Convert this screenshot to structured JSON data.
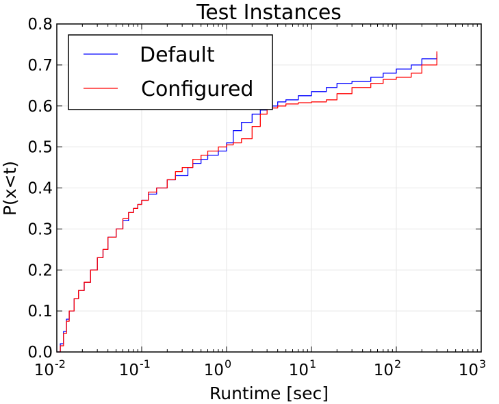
{
  "chart_data": {
    "type": "line",
    "title": "Test Instances",
    "xlabel": "Runtime [sec]",
    "ylabel": "P(x<t)",
    "xscale": "log",
    "xlim": [
      0.01,
      1000
    ],
    "ylim": [
      0.0,
      0.8
    ],
    "grid": true,
    "legend_position": "top-left",
    "x_ticks": [
      {
        "base": "10",
        "exp": "-2",
        "value": 0.01
      },
      {
        "base": "10",
        "exp": "-1",
        "value": 0.1
      },
      {
        "base": "10",
        "exp": "0",
        "value": 1
      },
      {
        "base": "10",
        "exp": "1",
        "value": 10
      },
      {
        "base": "10",
        "exp": "2",
        "value": 100
      },
      {
        "base": "10",
        "exp": "3",
        "value": 1000
      }
    ],
    "y_ticks": [
      "0.0",
      "0.1",
      "0.2",
      "0.3",
      "0.4",
      "0.5",
      "0.6",
      "0.7",
      "0.8"
    ],
    "series": [
      {
        "name": "Default",
        "color": "#0000ff",
        "x": [
          0.01,
          0.011,
          0.012,
          0.013,
          0.014,
          0.016,
          0.018,
          0.021,
          0.025,
          0.03,
          0.035,
          0.04,
          0.05,
          0.06,
          0.07,
          0.08,
          0.09,
          0.1,
          0.12,
          0.15,
          0.2,
          0.25,
          0.3,
          0.35,
          0.4,
          0.5,
          0.6,
          0.8,
          1.0,
          1.2,
          1.5,
          2.0,
          2.5,
          3.0,
          4.0,
          5.0,
          7.0,
          10.0,
          15.0,
          20.0,
          30.0,
          50.0,
          70.0,
          100.0,
          150.0,
          200.0,
          300.0
        ],
        "y": [
          0.0,
          0.02,
          0.05,
          0.08,
          0.1,
          0.13,
          0.15,
          0.17,
          0.2,
          0.23,
          0.25,
          0.28,
          0.3,
          0.32,
          0.34,
          0.35,
          0.36,
          0.37,
          0.385,
          0.4,
          0.42,
          0.43,
          0.43,
          0.45,
          0.46,
          0.47,
          0.48,
          0.49,
          0.51,
          0.54,
          0.56,
          0.58,
          0.59,
          0.6,
          0.61,
          0.615,
          0.625,
          0.635,
          0.645,
          0.655,
          0.66,
          0.67,
          0.68,
          0.69,
          0.7,
          0.715,
          0.727
        ]
      },
      {
        "name": "Configured",
        "color": "#ff0000",
        "x": [
          0.01,
          0.011,
          0.012,
          0.013,
          0.014,
          0.016,
          0.018,
          0.021,
          0.025,
          0.03,
          0.035,
          0.04,
          0.05,
          0.06,
          0.07,
          0.08,
          0.09,
          0.1,
          0.12,
          0.15,
          0.2,
          0.25,
          0.3,
          0.4,
          0.5,
          0.6,
          0.8,
          1.0,
          1.2,
          1.5,
          2.0,
          2.5,
          3.0,
          4.0,
          5.0,
          7.0,
          10.0,
          15.0,
          20.0,
          30.0,
          50.0,
          70.0,
          100.0,
          150.0,
          200.0,
          300.0
        ],
        "y": [
          0.0,
          0.015,
          0.045,
          0.075,
          0.1,
          0.13,
          0.15,
          0.17,
          0.2,
          0.23,
          0.25,
          0.28,
          0.3,
          0.325,
          0.34,
          0.35,
          0.36,
          0.37,
          0.39,
          0.4,
          0.42,
          0.44,
          0.45,
          0.47,
          0.48,
          0.49,
          0.5,
          0.505,
          0.51,
          0.52,
          0.55,
          0.58,
          0.595,
          0.6,
          0.605,
          0.608,
          0.61,
          0.615,
          0.63,
          0.645,
          0.655,
          0.665,
          0.67,
          0.68,
          0.7,
          0.733
        ]
      }
    ]
  }
}
